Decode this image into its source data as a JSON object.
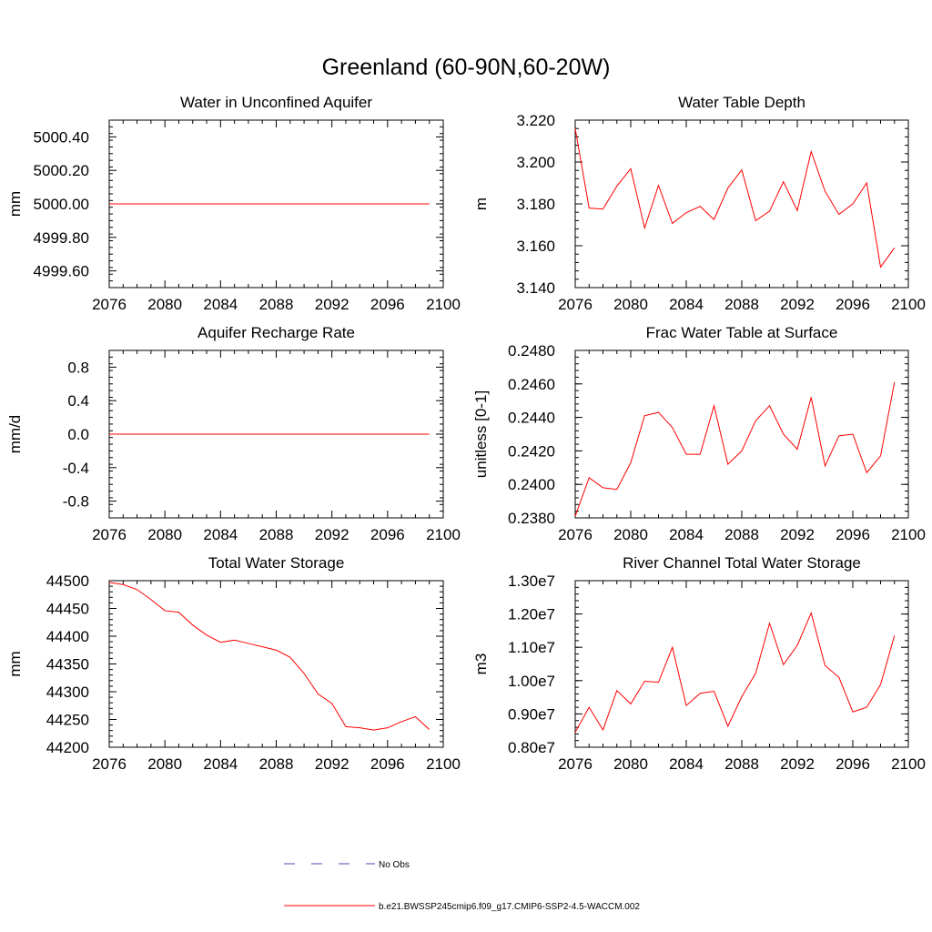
{
  "title": "Greenland (60-90N,60-20W)",
  "chart_data": [
    {
      "type": "line",
      "title": "Water in Unconfined Aquifer",
      "ylabel": "mm",
      "xlim": [
        2076,
        2100
      ],
      "ylim": [
        4999.5,
        5000.5
      ],
      "xticks": [
        2076,
        2080,
        2084,
        2088,
        2092,
        2096,
        2100
      ],
      "xtick_labels": [
        "2076",
        "2080",
        "2084",
        "2088",
        "2092",
        "2096",
        "2100"
      ],
      "yticks": [
        4999.6,
        4999.8,
        5000.0,
        5000.2,
        5000.4
      ],
      "ytick_labels": [
        "4999.60",
        "4999.80",
        "5000.00",
        "5000.20",
        "5000.40"
      ],
      "x": [
        2076,
        2077,
        2078,
        2079,
        2080,
        2081,
        2082,
        2083,
        2084,
        2085,
        2086,
        2087,
        2088,
        2089,
        2090,
        2091,
        2092,
        2093,
        2094,
        2095,
        2096,
        2097,
        2098,
        2099
      ],
      "series": [
        {
          "name": "b.e21.BWSSP245cmip6.f09_g17.CMIP6-SSP2-4.5-WACCM.002",
          "values": [
            5000,
            5000,
            5000,
            5000,
            5000,
            5000,
            5000,
            5000,
            5000,
            5000,
            5000,
            5000,
            5000,
            5000,
            5000,
            5000,
            5000,
            5000,
            5000,
            5000,
            5000,
            5000,
            5000,
            5000
          ]
        }
      ]
    },
    {
      "type": "line",
      "title": "Water Table Depth",
      "ylabel": "m",
      "xlim": [
        2076,
        2100
      ],
      "ylim": [
        3.14,
        3.22
      ],
      "xticks": [
        2076,
        2080,
        2084,
        2088,
        2092,
        2096,
        2100
      ],
      "xtick_labels": [
        "2076",
        "2080",
        "2084",
        "2088",
        "2092",
        "2096",
        "2100"
      ],
      "yticks": [
        3.14,
        3.16,
        3.18,
        3.2,
        3.22
      ],
      "ytick_labels": [
        "3.140",
        "3.160",
        "3.180",
        "3.200",
        "3.220"
      ],
      "x": [
        2076,
        2077,
        2078,
        2079,
        2080,
        2081,
        2082,
        2083,
        2084,
        2085,
        2086,
        2087,
        2088,
        2089,
        2090,
        2091,
        2092,
        2093,
        2094,
        2095,
        2096,
        2097,
        2098,
        2099
      ],
      "series": [
        {
          "name": "b.e21.BWSSP245cmip6.f09_g17.CMIP6-SSP2-4.5-WACCM.002",
          "values": [
            3.216,
            3.178,
            3.1775,
            3.1885,
            3.1968,
            3.1685,
            3.1888,
            3.1707,
            3.1758,
            3.1788,
            3.1725,
            3.1876,
            3.1962,
            3.172,
            3.1765,
            3.1906,
            3.1768,
            3.205,
            3.186,
            3.175,
            3.18,
            3.19,
            3.1498,
            3.159
          ]
        }
      ]
    },
    {
      "type": "line",
      "title": "Aquifer Recharge Rate",
      "ylabel": "mm/d",
      "xlim": [
        2076,
        2100
      ],
      "ylim": [
        -1.0,
        1.0
      ],
      "xticks": [
        2076,
        2080,
        2084,
        2088,
        2092,
        2096,
        2100
      ],
      "xtick_labels": [
        "2076",
        "2080",
        "2084",
        "2088",
        "2092",
        "2096",
        "2100"
      ],
      "yticks": [
        -0.8,
        -0.4,
        0.0,
        0.4,
        0.8
      ],
      "ytick_labels": [
        "-0.8",
        "-0.4",
        "0.0",
        "0.4",
        "0.8"
      ],
      "x": [
        2076,
        2077,
        2078,
        2079,
        2080,
        2081,
        2082,
        2083,
        2084,
        2085,
        2086,
        2087,
        2088,
        2089,
        2090,
        2091,
        2092,
        2093,
        2094,
        2095,
        2096,
        2097,
        2098,
        2099
      ],
      "series": [
        {
          "name": "b.e21.BWSSP245cmip6.f09_g17.CMIP6-SSP2-4.5-WACCM.002",
          "values": [
            0,
            0,
            0,
            0,
            0,
            0,
            0,
            0,
            0,
            0,
            0,
            0,
            0,
            0,
            0,
            0,
            0,
            0,
            0,
            0,
            0,
            0,
            0,
            0
          ]
        }
      ]
    },
    {
      "type": "line",
      "title": "Frac Water Table at Surface",
      "ylabel": "unitless [0-1]",
      "xlim": [
        2076,
        2100
      ],
      "ylim": [
        0.238,
        0.248
      ],
      "xticks": [
        2076,
        2080,
        2084,
        2088,
        2092,
        2096,
        2100
      ],
      "xtick_labels": [
        "2076",
        "2080",
        "2084",
        "2088",
        "2092",
        "2096",
        "2100"
      ],
      "yticks": [
        0.238,
        0.24,
        0.242,
        0.244,
        0.246,
        0.248
      ],
      "ytick_labels": [
        "0.2380",
        "0.2400",
        "0.2420",
        "0.2440",
        "0.2460",
        "0.2480"
      ],
      "x": [
        2076,
        2077,
        2078,
        2079,
        2080,
        2081,
        2082,
        2083,
        2084,
        2085,
        2086,
        2087,
        2088,
        2089,
        2090,
        2091,
        2092,
        2093,
        2094,
        2095,
        2096,
        2097,
        2098,
        2099
      ],
      "series": [
        {
          "name": "b.e21.BWSSP245cmip6.f09_g17.CMIP6-SSP2-4.5-WACCM.002",
          "values": [
            0.2381,
            0.2404,
            0.2398,
            0.2397,
            0.2413,
            0.2441,
            0.2443,
            0.2434,
            0.2418,
            0.2418,
            0.2447,
            0.2412,
            0.242,
            0.2438,
            0.2447,
            0.243,
            0.2421,
            0.2452,
            0.2411,
            0.2429,
            0.243,
            0.2407,
            0.2417,
            0.2461
          ]
        }
      ]
    },
    {
      "type": "line",
      "title": "Total Water Storage",
      "ylabel": "mm",
      "xlim": [
        2076,
        2100
      ],
      "ylim": [
        44200,
        44500
      ],
      "xticks": [
        2076,
        2080,
        2084,
        2088,
        2092,
        2096,
        2100
      ],
      "xtick_labels": [
        "2076",
        "2080",
        "2084",
        "2088",
        "2092",
        "2096",
        "2100"
      ],
      "yticks": [
        44200,
        44250,
        44300,
        44350,
        44400,
        44450,
        44500
      ],
      "ytick_labels": [
        "44200",
        "44250",
        "44300",
        "44350",
        "44400",
        "44450",
        "44500"
      ],
      "x": [
        2076,
        2077,
        2078,
        2079,
        2080,
        2081,
        2082,
        2083,
        2084,
        2085,
        2086,
        2087,
        2088,
        2089,
        2090,
        2091,
        2092,
        2093,
        2094,
        2095,
        2096,
        2097,
        2098,
        2099
      ],
      "series": [
        {
          "name": "b.e21.BWSSP245cmip6.f09_g17.CMIP6-SSP2-4.5-WACCM.002",
          "values": [
            44497,
            44493,
            44484,
            44466,
            44446,
            44443,
            44420,
            44402,
            44389,
            44393,
            44387,
            44381,
            44375,
            44362,
            44333,
            44296,
            44279,
            44237,
            44235,
            44231,
            44235,
            44246,
            44255,
            44232
          ]
        }
      ]
    },
    {
      "type": "line",
      "title": "River Channel Total Water Storage",
      "ylabel": "m3",
      "xlim": [
        2076,
        2100
      ],
      "ylim": [
        8000000.0,
        13000000.0
      ],
      "xticks": [
        2076,
        2080,
        2084,
        2088,
        2092,
        2096,
        2100
      ],
      "xtick_labels": [
        "2076",
        "2080",
        "2084",
        "2088",
        "2092",
        "2096",
        "2100"
      ],
      "yticks": [
        8000000.0,
        9000000.0,
        10000000.0,
        11000000.0,
        12000000.0,
        13000000.0
      ],
      "ytick_labels": [
        "0.80e7",
        "0.90e7",
        "1.00e7",
        "1.10e7",
        "1.20e7",
        "1.30e7"
      ],
      "x": [
        2076,
        2077,
        2078,
        2079,
        2080,
        2081,
        2082,
        2083,
        2084,
        2085,
        2086,
        2087,
        2088,
        2089,
        2090,
        2091,
        2092,
        2093,
        2094,
        2095,
        2096,
        2097,
        2098,
        2099
      ],
      "series": [
        {
          "name": "b.e21.BWSSP245cmip6.f09_g17.CMIP6-SSP2-4.5-WACCM.002",
          "values": [
            8450000,
            9200000,
            8520000,
            9700000,
            9300000,
            9980000,
            9950000,
            11000000,
            9250000,
            9620000,
            9680000,
            8630000,
            9520000,
            10220000,
            11720000,
            10480000,
            11060000,
            12030000,
            10450000,
            10100000,
            9060000,
            9200000,
            9880000,
            11350000
          ]
        }
      ]
    }
  ],
  "legend": {
    "placement": "bottom-center",
    "obs_label": "No Obs",
    "model_label": "b.e21.BWSSP245cmip6.f09_g17.CMIP6-SSP2-4.5-WACCM.002"
  },
  "colors": {
    "series": "#ff0000",
    "obs": "#4a4ab0",
    "axes": "#000000"
  }
}
